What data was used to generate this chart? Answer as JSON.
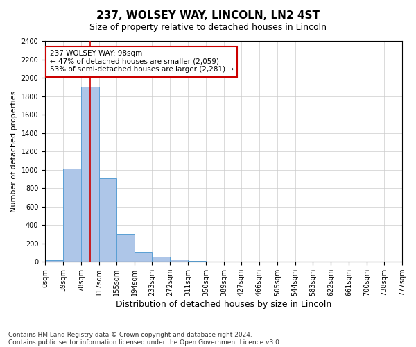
{
  "title": "237, WOLSEY WAY, LINCOLN, LN2 4ST",
  "subtitle": "Size of property relative to detached houses in Lincoln",
  "xlabel": "Distribution of detached houses by size in Lincoln",
  "ylabel": "Number of detached properties",
  "bin_edges": [
    0,
    39,
    78,
    117,
    155,
    194,
    233,
    272,
    311,
    350,
    389,
    427,
    466,
    505,
    544,
    583,
    622,
    661,
    700,
    738,
    777
  ],
  "bar_heights": [
    20,
    1010,
    1900,
    910,
    305,
    105,
    55,
    25,
    10,
    5,
    2,
    1,
    0,
    0,
    0,
    0,
    0,
    0,
    0,
    0
  ],
  "bar_color": "#aec6e8",
  "bar_edge_color": "#5a9fd4",
  "property_size": 98,
  "vline_color": "#cc0000",
  "annotation_text": "237 WOLSEY WAY: 98sqm\n← 47% of detached houses are smaller (2,059)\n53% of semi-detached houses are larger (2,281) →",
  "annotation_box_color": "#ffffff",
  "annotation_box_edge": "#cc0000",
  "ylim": [
    0,
    2400
  ],
  "yticks": [
    0,
    200,
    400,
    600,
    800,
    1000,
    1200,
    1400,
    1600,
    1800,
    2000,
    2200,
    2400
  ],
  "footer": "Contains HM Land Registry data © Crown copyright and database right 2024.\nContains public sector information licensed under the Open Government Licence v3.0.",
  "title_fontsize": 11,
  "subtitle_fontsize": 9,
  "xlabel_fontsize": 9,
  "ylabel_fontsize": 8,
  "tick_fontsize": 7,
  "annotation_fontsize": 7.5,
  "footer_fontsize": 6.5
}
